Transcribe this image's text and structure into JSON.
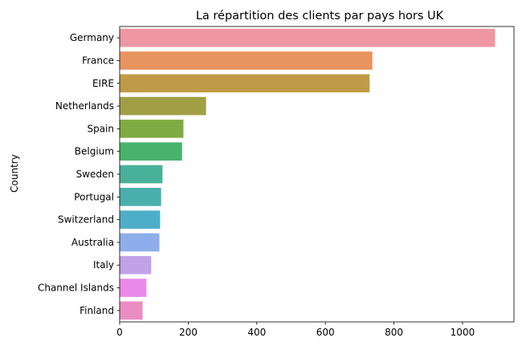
{
  "chart_data": {
    "type": "bar",
    "orientation": "horizontal",
    "title": "La répartition des clients par pays hors UK",
    "xlabel": "",
    "ylabel": "Country",
    "categories": [
      "Germany",
      "France",
      "EIRE",
      "Netherlands",
      "Spain",
      "Belgium",
      "Sweden",
      "Portugal",
      "Switzerland",
      "Australia",
      "Italy",
      "Channel Islands",
      "Finland"
    ],
    "values": [
      1095,
      737,
      729,
      252,
      186,
      182,
      125,
      121,
      118,
      116,
      92,
      78,
      67
    ],
    "colors": [
      "#ee96a3",
      "#e8945f",
      "#c09b47",
      "#a19f44",
      "#7fac42",
      "#47b36d",
      "#49b09a",
      "#4aafaa",
      "#4eaec8",
      "#8daeea",
      "#c1a1e8",
      "#ea89e8",
      "#ea8dc3"
    ],
    "xlim": [
      0,
      1150
    ],
    "xticks": [
      0,
      200,
      400,
      600,
      800,
      1000
    ],
    "grid": false,
    "legend": "none"
  }
}
